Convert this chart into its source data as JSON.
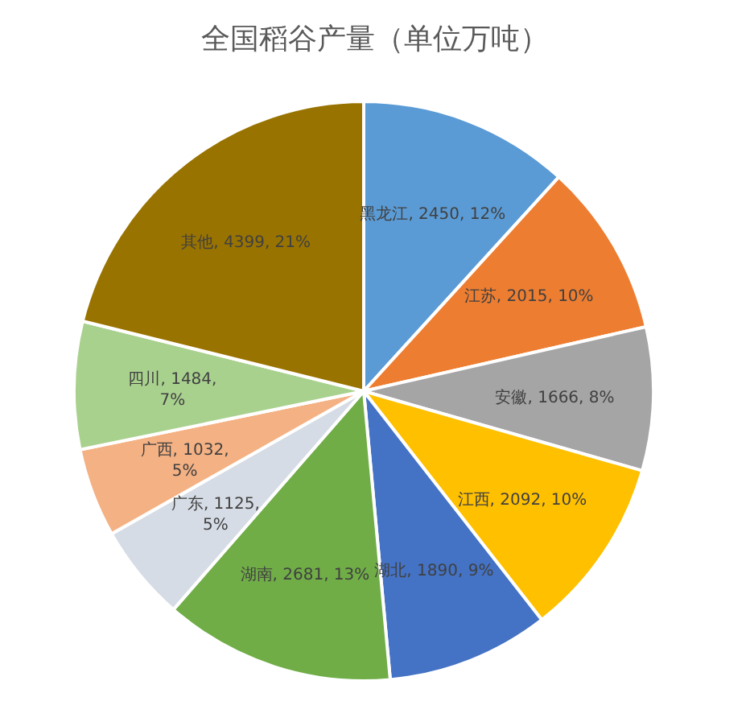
{
  "chart_data": {
    "type": "pie",
    "title": "全国稻谷产量（单位万吨）",
    "categories": [
      "黑龙江",
      "江苏",
      "安徽",
      "江西",
      "湖北",
      "湖南",
      "广东",
      "广西",
      "四川",
      "其他"
    ],
    "values": [
      2450,
      2015,
      1666,
      2092,
      1890,
      2681,
      1125,
      1032,
      1484,
      4399
    ],
    "value_labels": [
      "2450, 12%",
      "2015, 10%",
      "1666, 8%",
      "2092, 10%",
      "1890, 9%",
      "2681, 13%",
      "1125, 5%",
      "1032, 5%",
      "1484, 7%",
      "4399, 21%"
    ],
    "colors": [
      "#5b9bd5",
      "#ed7d31",
      "#a5a5a5",
      "#ffc000",
      "#4472c4",
      "#70ad47",
      "#d6dce5",
      "#f4b183",
      "#a9d18e",
      "#997300"
    ]
  }
}
